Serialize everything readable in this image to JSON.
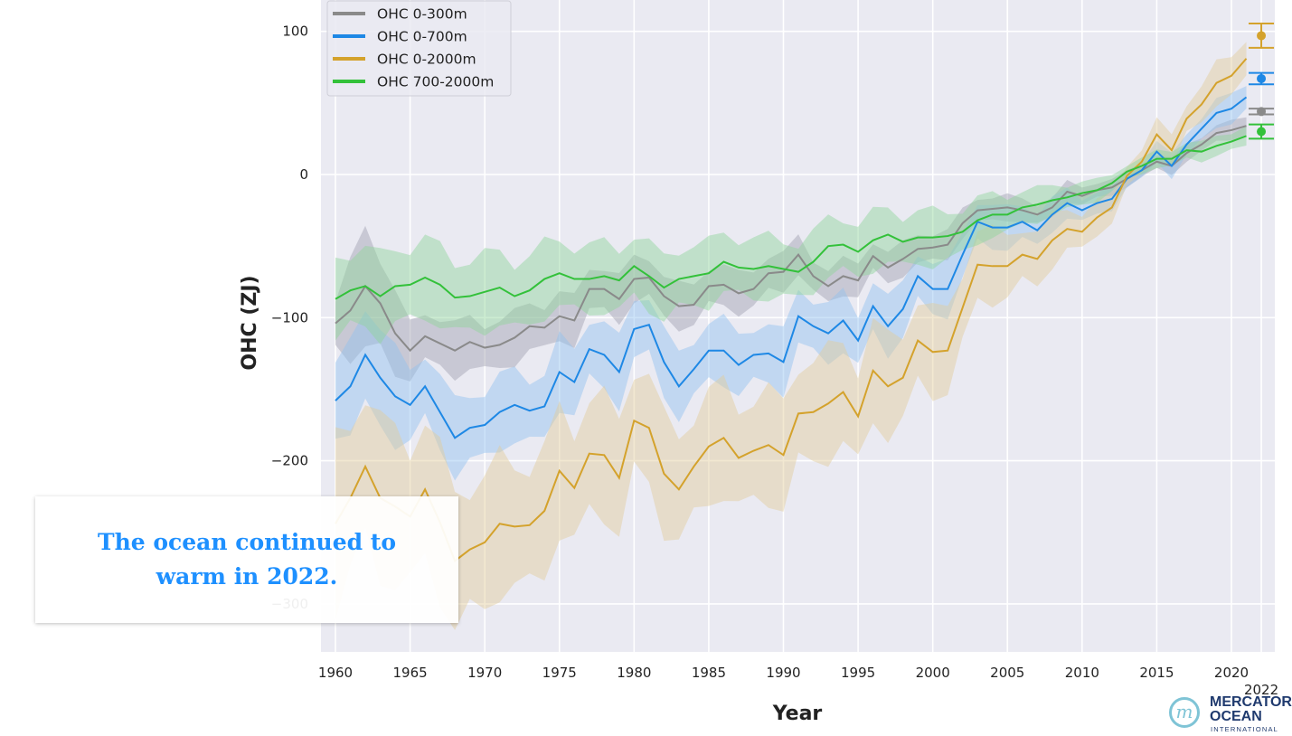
{
  "chart_data": {
    "type": "line",
    "xlabel": "Year",
    "ylabel": "OHC (ZJ)",
    "xlim": [
      1959,
      2023
    ],
    "ylim": [
      -333,
      122
    ],
    "grid": true,
    "legend_position": "top-left",
    "x_ticks": [
      1960,
      1965,
      1970,
      1975,
      1980,
      1985,
      1990,
      1995,
      2000,
      2005,
      2010,
      2015,
      2020
    ],
    "x_tick_labels": [
      "1960",
      "1965",
      "1970",
      "1975",
      "1980",
      "1985",
      "1990",
      "1995",
      "2000",
      "2005",
      "2010",
      "2015",
      "2020"
    ],
    "extra_x_tick_label": {
      "x": 2022,
      "label": "2022"
    },
    "y_ticks": [
      100,
      0,
      -100,
      -200,
      -300
    ],
    "y_tick_labels": [
      "100",
      "0",
      "−100",
      "−200",
      "−300"
    ],
    "x_start": 1960,
    "series": [
      {
        "name": "OHC 0-300m",
        "color": "#8a8a8a",
        "band_color": "#a0a0b0",
        "values": [
          -104,
          -95,
          -78,
          -90,
          -111,
          -123,
          -113,
          -118,
          -123,
          -117,
          -121,
          -119,
          -114,
          -106,
          -107,
          -99,
          -102,
          -80,
          -80,
          -87,
          -73,
          -72,
          -85,
          -92,
          -91,
          -78,
          -77,
          -83,
          -80,
          -69,
          -68,
          -56,
          -71,
          -78,
          -71,
          -74,
          -57,
          -65,
          -59,
          -52,
          -51,
          -49,
          -34,
          -25,
          -24,
          -23,
          -25,
          -28,
          -23,
          -12,
          -15,
          -11,
          -9,
          -3,
          3,
          9,
          6,
          15,
          21,
          29,
          31,
          34
        ],
        "uncertainty": {
          "years": [
            1960,
            1962,
            1965,
            1980,
            2000,
            2013,
            2021
          ],
          "halfwidth": [
            15,
            45,
            18,
            15,
            10,
            5,
            6
          ]
        },
        "point_2022": {
          "value": 44,
          "error": 2
        }
      },
      {
        "name": "OHC 0-700m",
        "color": "#1e88e5",
        "band_color": "#90c0f0",
        "values": [
          -158,
          -148,
          -126,
          -142,
          -155,
          -161,
          -148,
          -166,
          -184,
          -177,
          -175,
          -166,
          -161,
          -165,
          -162,
          -138,
          -145,
          -122,
          -126,
          -138,
          -108,
          -105,
          -131,
          -148,
          -136,
          -123,
          -123,
          -133,
          -126,
          -125,
          -131,
          -99,
          -106,
          -111,
          -102,
          -116,
          -92,
          -106,
          -94,
          -71,
          -80,
          -80,
          -56,
          -33,
          -37,
          -37,
          -33,
          -39,
          -28,
          -20,
          -25,
          -20,
          -17,
          -3,
          3,
          16,
          6,
          21,
          32,
          43,
          46,
          54
        ],
        "uncertainty": {
          "years": [
            1960,
            1962,
            1965,
            1980,
            2000,
            2013,
            2021
          ],
          "halfwidth": [
            22,
            40,
            25,
            22,
            18,
            6,
            10
          ]
        },
        "point_2022": {
          "value": 67,
          "error": 4
        }
      },
      {
        "name": "OHC 0-2000m",
        "color": "#d4a22c",
        "band_color": "#e3cc9a",
        "values": [
          -244,
          -226,
          -204,
          -226,
          -232,
          -239,
          -220,
          -243,
          -270,
          -262,
          -257,
          -244,
          -246,
          -245,
          -235,
          -207,
          -219,
          -195,
          -196,
          -212,
          -172,
          -177,
          -209,
          -220,
          -204,
          -190,
          -184,
          -198,
          -193,
          -189,
          -196,
          -167,
          -166,
          -160,
          -152,
          -169,
          -137,
          -148,
          -142,
          -116,
          -124,
          -123,
          -93,
          -63,
          -64,
          -64,
          -56,
          -59,
          -46,
          -38,
          -40,
          -30,
          -23,
          -1,
          9,
          28,
          17,
          39,
          49,
          64,
          69,
          81
        ],
        "uncertainty": {
          "years": [
            1960,
            1970,
            1980,
            1995,
            2003,
            2013,
            2021
          ],
          "halfwidth": [
            55,
            45,
            38,
            35,
            25,
            8,
            15
          ]
        },
        "point_2022": {
          "value": 97,
          "error": 8.5
        }
      },
      {
        "name": "OHC 700-2000m",
        "color": "#33c13a",
        "band_color": "#8fd49a",
        "values": [
          -87,
          -81,
          -78,
          -85,
          -78,
          -77,
          -72,
          -77,
          -86,
          -85,
          -82,
          -79,
          -85,
          -81,
          -73,
          -69,
          -73,
          -73,
          -71,
          -74,
          -64,
          -71,
          -79,
          -73,
          -71,
          -69,
          -61,
          -65,
          -66,
          -64,
          -66,
          -68,
          -61,
          -50,
          -49,
          -54,
          -46,
          -42,
          -47,
          -44,
          -44,
          -43,
          -40,
          -32,
          -28,
          -28,
          -23,
          -21,
          -18,
          -16,
          -13,
          -11,
          -6,
          2,
          6,
          11,
          11,
          17,
          16,
          20,
          23,
          27
        ],
        "uncertainty": {
          "years": [
            1960,
            1980,
            2000,
            2013,
            2021
          ],
          "halfwidth": [
            28,
            22,
            18,
            5,
            7
          ]
        },
        "point_2022": {
          "value": 30,
          "error": 5
        }
      }
    ]
  },
  "caption": "The ocean continued to warm in 2022.",
  "logo": {
    "line1": "MERCATOR",
    "line2": "OCEAN",
    "line3": "INTERNATIONAL",
    "mark": "m"
  }
}
